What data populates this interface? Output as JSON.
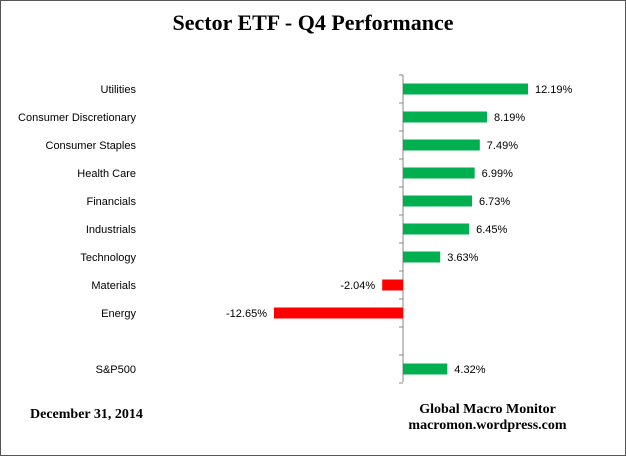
{
  "chart_data": {
    "type": "bar",
    "orientation": "horizontal",
    "title": "Sector ETF - Q4 Performance",
    "categories": [
      "Utilities",
      "Consumer Discretionary",
      "Consumer Staples",
      "Health Care",
      "Financials",
      "Industrials",
      "Technology",
      "Materials",
      "Energy",
      "",
      "S&P500"
    ],
    "values": [
      12.19,
      8.19,
      7.49,
      6.99,
      6.73,
      6.45,
      3.63,
      -2.04,
      -12.65,
      null,
      4.32
    ],
    "value_labels": [
      "12.19%",
      "8.19%",
      "7.49%",
      "6.99%",
      "6.73%",
      "6.45%",
      "3.63%",
      "-2.04%",
      "-12.65%",
      "",
      "4.32%"
    ],
    "xlim": [
      -12.65,
      12.19
    ],
    "grid": false,
    "legend": "none",
    "colors": {
      "positive": "#00b050",
      "negative": "#ff0000"
    }
  },
  "footer": {
    "date": "December 31,  2014",
    "source_line1": "Global Macro Monitor",
    "source_line2": "macromon.wordpress.com"
  }
}
